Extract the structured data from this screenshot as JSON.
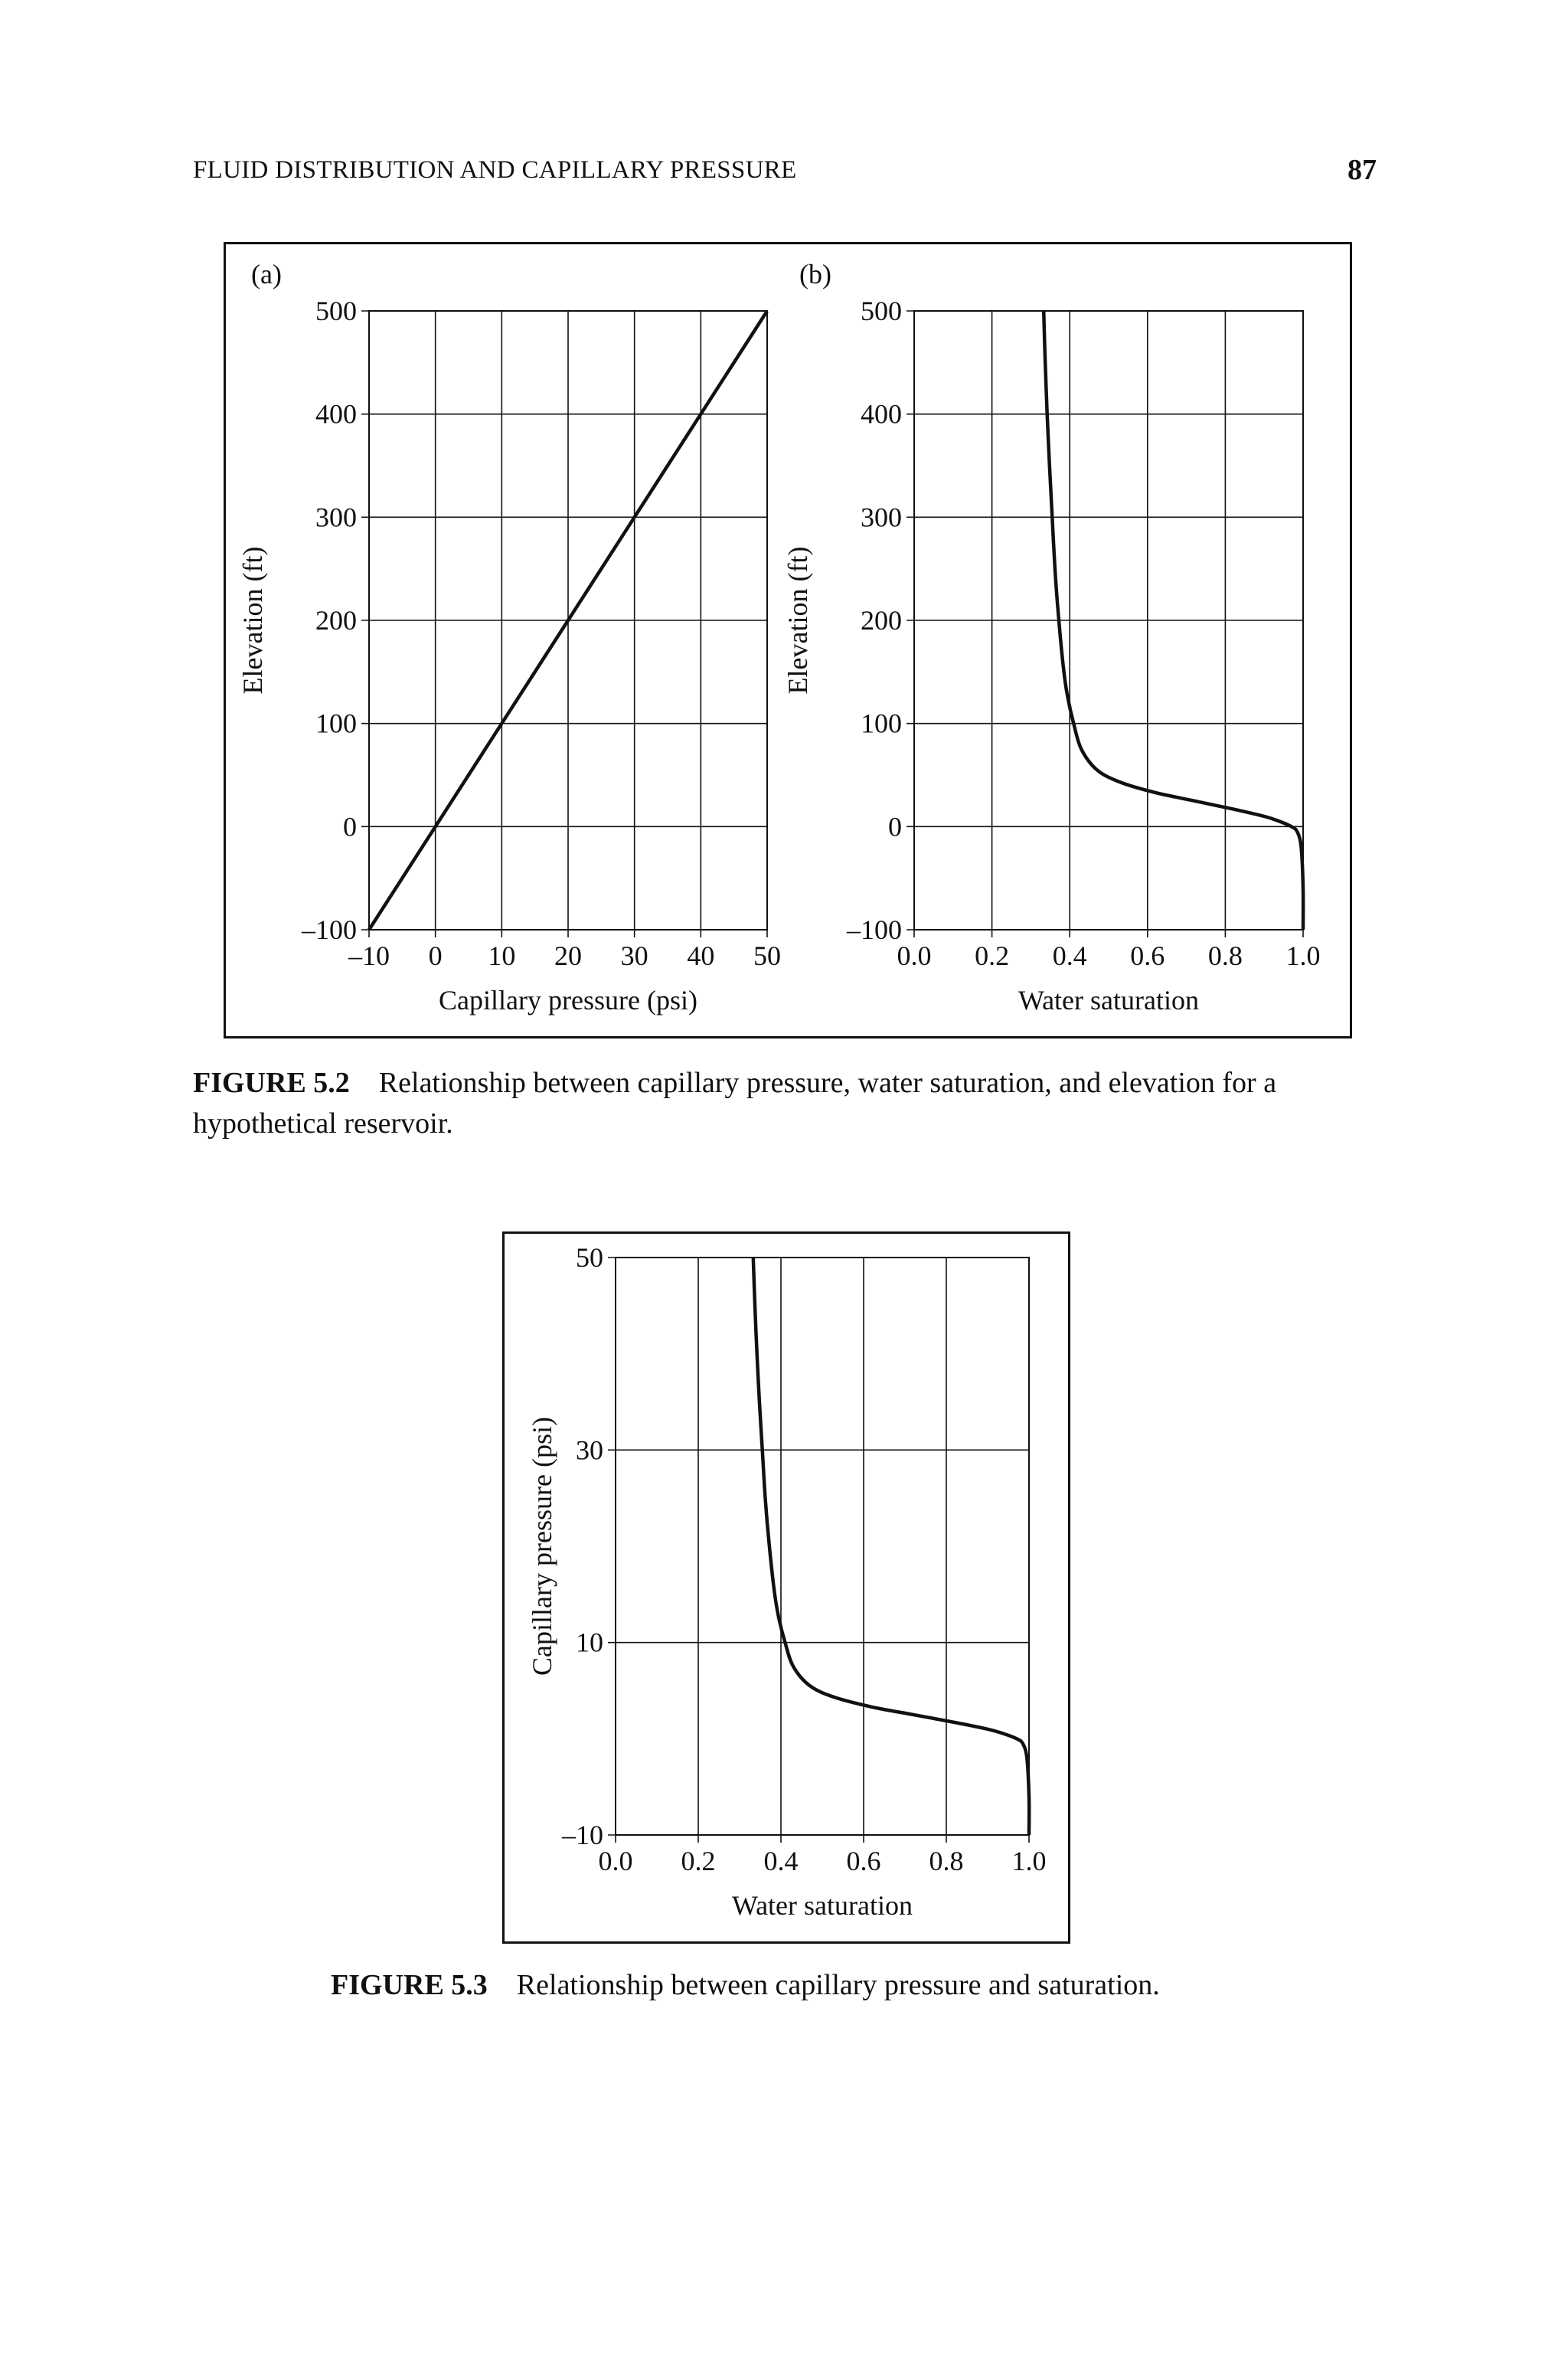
{
  "header": {
    "running_title": "FLUID DISTRIBUTION AND CAPILLARY PRESSURE",
    "page_number": "87"
  },
  "figures": [
    {
      "label": "FIGURE 5.2",
      "caption": "Relationship between capillary pressure, water saturation, and elevation for a hypothetical reservoir."
    },
    {
      "label": "FIGURE 5.3",
      "caption": "Relationship between capillary pressure and saturation."
    }
  ],
  "chart_data": [
    {
      "panel": "(a)",
      "type": "line",
      "xlabel": "Capillary pressure (psi)",
      "ylabel": "Elevation (ft)",
      "xlim": [
        -10,
        50
      ],
      "ylim": [
        -100,
        500
      ],
      "xticks": [
        "–10",
        "0",
        "10",
        "20",
        "30",
        "40",
        "50"
      ],
      "yticks": [
        "–100",
        "0",
        "100",
        "200",
        "300",
        "400",
        "500"
      ],
      "grid": true,
      "series": [
        {
          "x": [
            -10,
            0,
            10,
            20,
            30,
            40,
            50
          ],
          "y": [
            -100,
            0,
            100,
            200,
            300,
            400,
            500
          ]
        }
      ]
    },
    {
      "panel": "(b)",
      "type": "line",
      "xlabel": "Water saturation",
      "ylabel": "Elevation (ft)",
      "xlim": [
        0,
        1
      ],
      "ylim": [
        -100,
        500
      ],
      "xticks": [
        "0.0",
        "0.2",
        "0.4",
        "0.6",
        "0.8",
        "1.0"
      ],
      "yticks": [
        "–100",
        "0",
        "100",
        "200",
        "300",
        "400",
        "500"
      ],
      "grid": true,
      "series": [
        {
          "x": [
            1.0,
            1.0,
            0.995,
            0.985,
            0.97,
            0.94,
            0.9,
            0.82,
            0.72,
            0.62,
            0.53,
            0.47,
            0.43,
            0.41,
            0.395,
            0.385,
            0.372,
            0.362,
            0.355,
            0.348,
            0.342,
            0.337,
            0.333
          ],
          "y": [
            -100,
            -60,
            -20,
            -5,
            0,
            5,
            10,
            17,
            25,
            33,
            43,
            55,
            75,
            100,
            125,
            150,
            200,
            250,
            300,
            350,
            400,
            450,
            500
          ]
        }
      ]
    },
    {
      "panel": "",
      "type": "line",
      "xlabel": "Water saturation",
      "ylabel": "Capillary pressure (psi)",
      "xlim": [
        0,
        1
      ],
      "ylim": [
        -10,
        50
      ],
      "xticks": [
        "0.0",
        "0.2",
        "0.4",
        "0.6",
        "0.8",
        "1.0"
      ],
      "yticks": [
        "–10",
        "10",
        "30",
        "50"
      ],
      "ytick_values": [
        -10,
        10,
        30,
        50
      ],
      "grid": true,
      "series": [
        {
          "x": [
            1.0,
            1.0,
            0.995,
            0.985,
            0.97,
            0.94,
            0.9,
            0.82,
            0.72,
            0.62,
            0.53,
            0.47,
            0.43,
            0.41,
            0.395,
            0.385,
            0.372,
            0.362,
            0.355,
            0.348,
            0.342,
            0.337,
            0.333
          ],
          "y": [
            -10,
            -6,
            -2,
            -0.5,
            0,
            0.5,
            1,
            1.7,
            2.5,
            3.3,
            4.3,
            5.5,
            7.5,
            10,
            12.5,
            15,
            20,
            25,
            30,
            35,
            40,
            45,
            50
          ]
        }
      ]
    }
  ]
}
